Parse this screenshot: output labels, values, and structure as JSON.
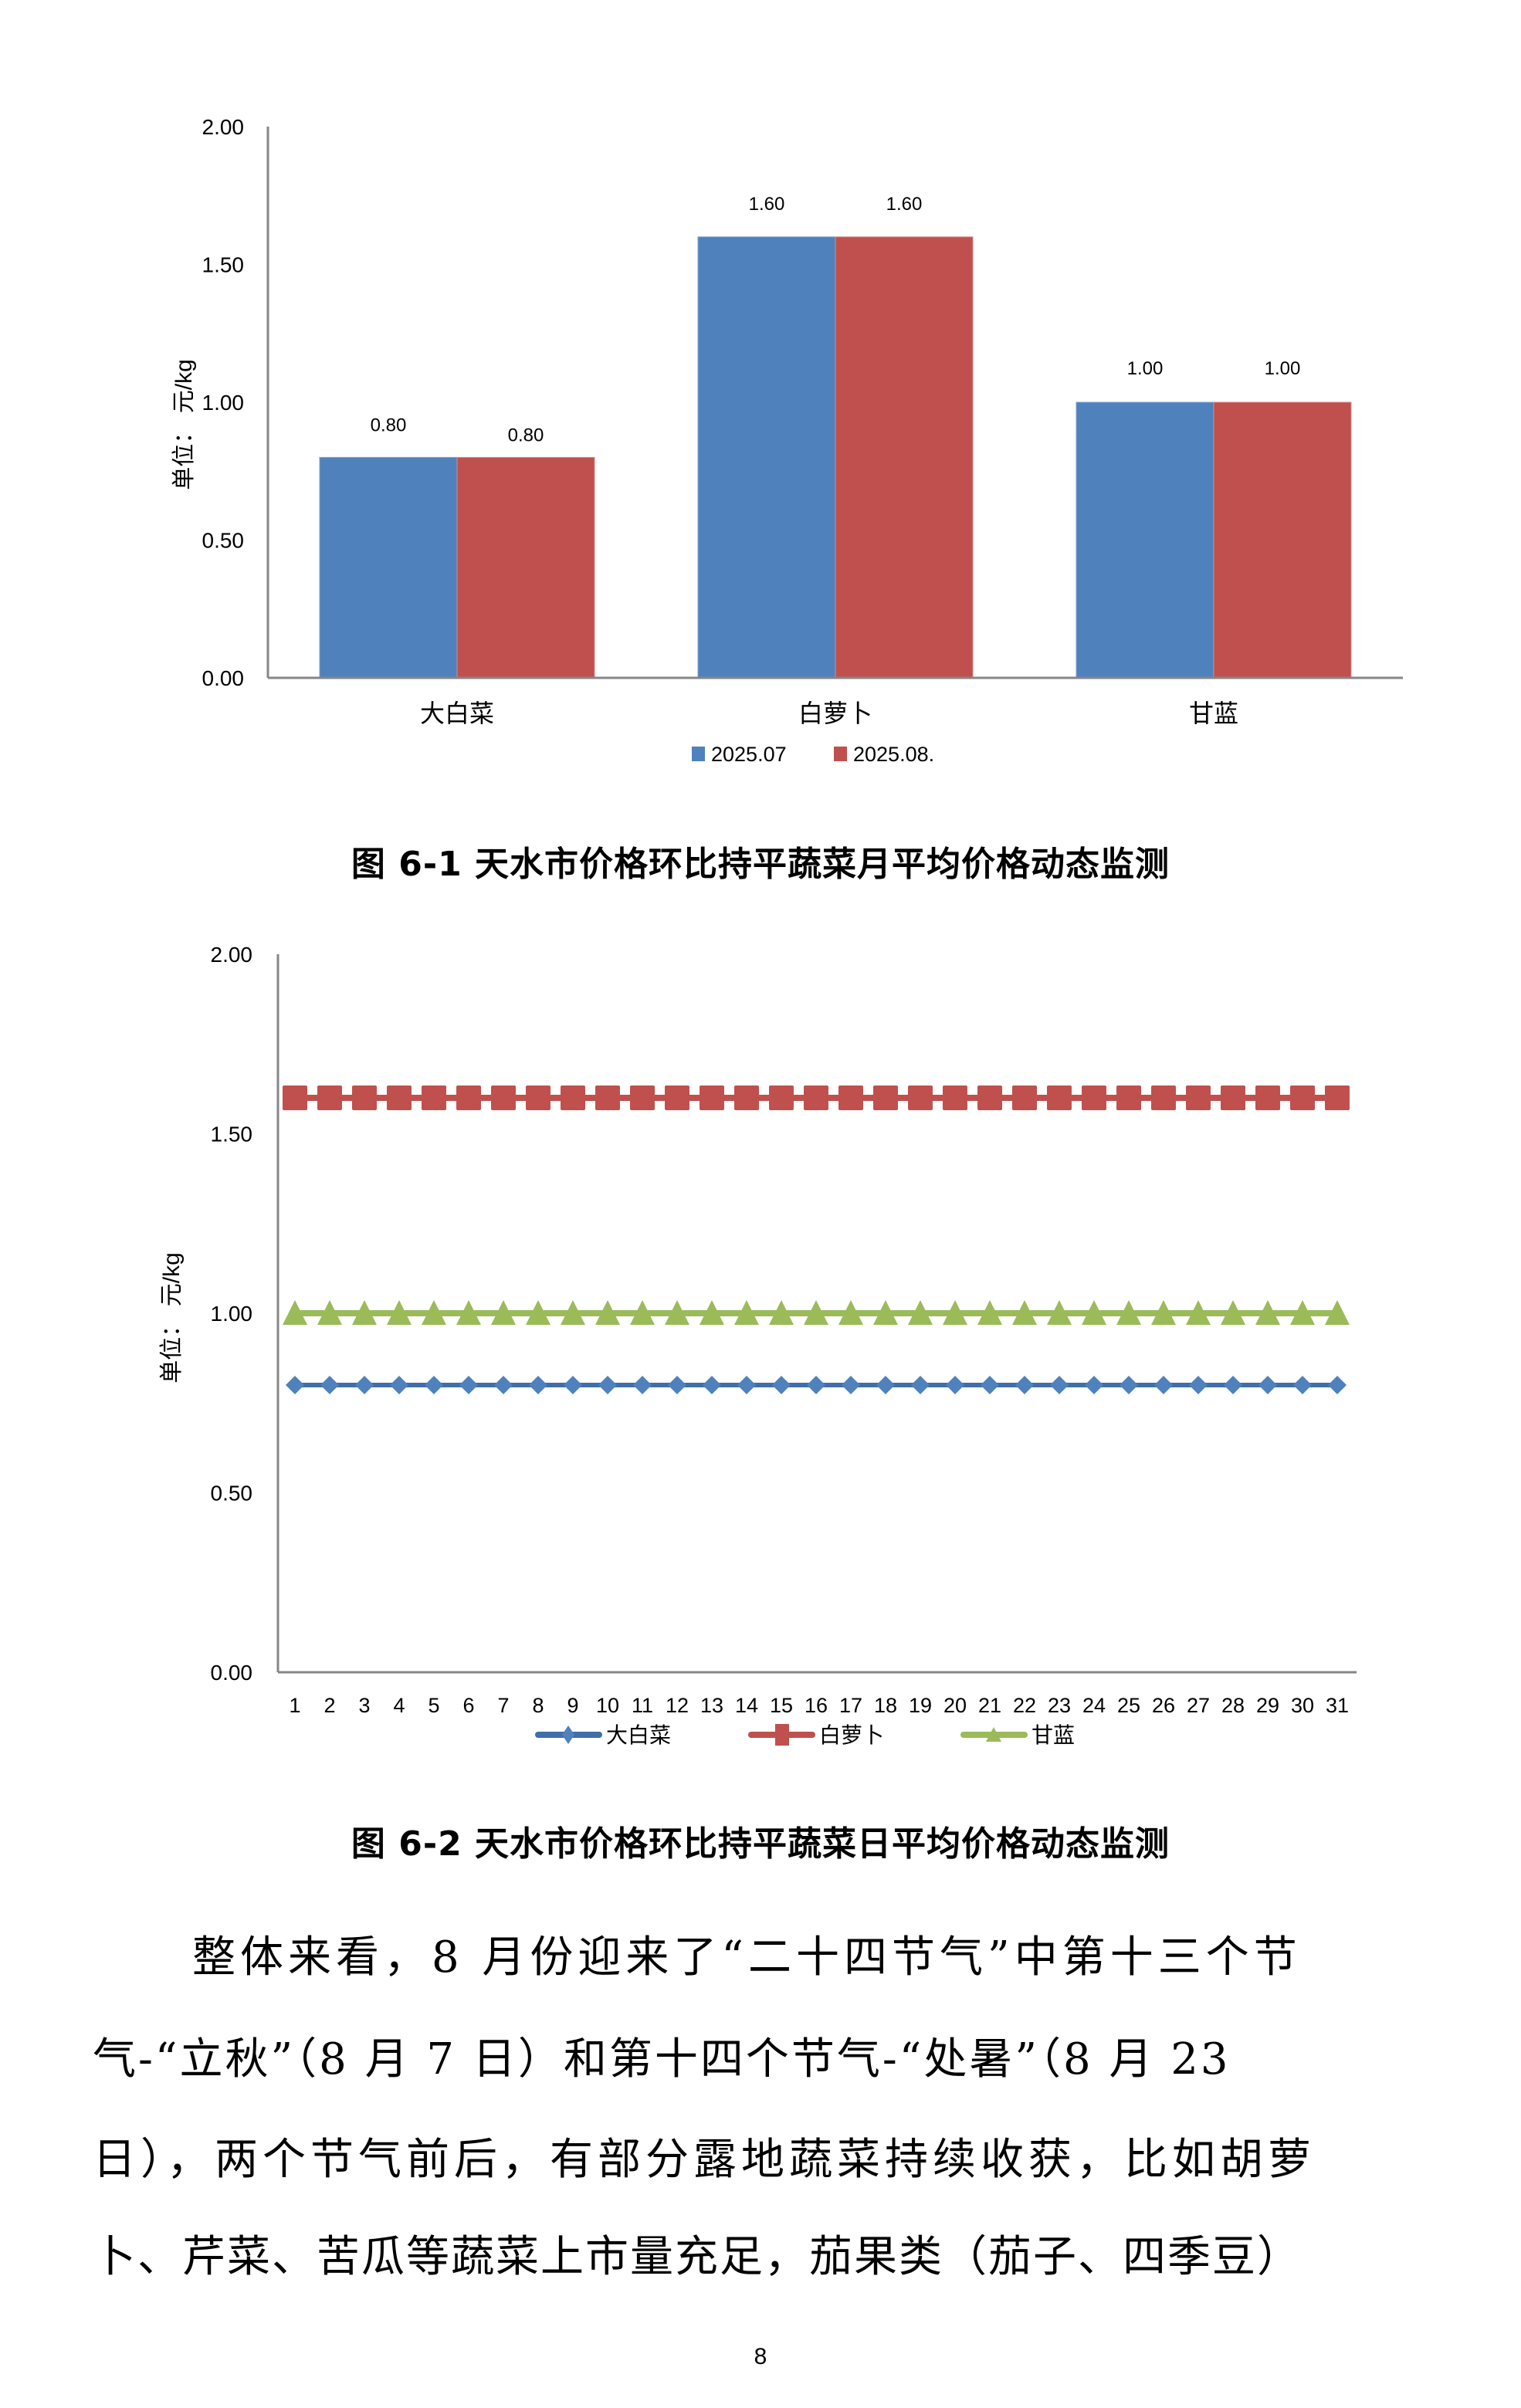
{
  "chart_data": [
    {
      "type": "bar",
      "title": "图 6-1 天水市价格环比持平蔬菜月平均价格动态监测",
      "xlabel": "",
      "ylabel": "单位：元/kg",
      "ylim": [
        0,
        2.0
      ],
      "yticks": [
        "0.00",
        "0.50",
        "1.00",
        "1.50",
        "2.00"
      ],
      "grid": false,
      "legend_position": "bottom",
      "categories": [
        "大白菜",
        "白萝卜",
        "甘蓝"
      ],
      "series": [
        {
          "name": "2025.07",
          "color": "#4F81BD",
          "values": [
            0.8,
            1.6,
            1.0
          ],
          "labels": [
            "0.80",
            "1.60",
            "1.00"
          ]
        },
        {
          "name": "2025.08.",
          "color": "#C0504D",
          "values": [
            0.8,
            1.6,
            1.0
          ],
          "labels": [
            "0.80",
            "1.60",
            "1.00"
          ]
        }
      ]
    },
    {
      "type": "line",
      "title": "图 6-2 天水市价格环比持平蔬菜日平均价格动态监测",
      "xlabel": "",
      "ylabel": "单位：元/kg",
      "ylim": [
        0,
        2.0
      ],
      "yticks": [
        "0.00",
        "0.50",
        "1.00",
        "1.50",
        "2.00"
      ],
      "grid": false,
      "legend_position": "bottom",
      "x": [
        "1",
        "2",
        "3",
        "4",
        "5",
        "6",
        "7",
        "8",
        "9",
        "10",
        "11",
        "12",
        "13",
        "14",
        "15",
        "16",
        "17",
        "18",
        "19",
        "20",
        "21",
        "22",
        "23",
        "24",
        "25",
        "26",
        "27",
        "28",
        "29",
        "30",
        "31"
      ],
      "series": [
        {
          "name": "大白菜",
          "color": "#4F81BD",
          "marker": "diamond",
          "values": [
            0.8,
            0.8,
            0.8,
            0.8,
            0.8,
            0.8,
            0.8,
            0.8,
            0.8,
            0.8,
            0.8,
            0.8,
            0.8,
            0.8,
            0.8,
            0.8,
            0.8,
            0.8,
            0.8,
            0.8,
            0.8,
            0.8,
            0.8,
            0.8,
            0.8,
            0.8,
            0.8,
            0.8,
            0.8,
            0.8,
            0.8
          ]
        },
        {
          "name": "白萝卜",
          "color": "#C0504D",
          "marker": "square",
          "values": [
            1.6,
            1.6,
            1.6,
            1.6,
            1.6,
            1.6,
            1.6,
            1.6,
            1.6,
            1.6,
            1.6,
            1.6,
            1.6,
            1.6,
            1.6,
            1.6,
            1.6,
            1.6,
            1.6,
            1.6,
            1.6,
            1.6,
            1.6,
            1.6,
            1.6,
            1.6,
            1.6,
            1.6,
            1.6,
            1.6,
            1.6
          ]
        },
        {
          "name": "甘蓝",
          "color": "#9BBB59",
          "marker": "triangle",
          "values": [
            1.0,
            1.0,
            1.0,
            1.0,
            1.0,
            1.0,
            1.0,
            1.0,
            1.0,
            1.0,
            1.0,
            1.0,
            1.0,
            1.0,
            1.0,
            1.0,
            1.0,
            1.0,
            1.0,
            1.0,
            1.0,
            1.0,
            1.0,
            1.0,
            1.0,
            1.0,
            1.0,
            1.0,
            1.0,
            1.0,
            1.0
          ]
        }
      ]
    }
  ],
  "figure1": {
    "caption": "图 6-1  天水市价格环比持平蔬菜月平均价格动态监测",
    "ylabel_cn": "单位：",
    "ylabel_unit": "元/kg",
    "legend": [
      "2025.07",
      "2025.08."
    ]
  },
  "figure2": {
    "caption": "图 6-2  天水市价格环比持平蔬菜日平均价格动态监测",
    "ylabel_cn": "单位：",
    "ylabel_unit": "元/kg",
    "legend": [
      "大白菜",
      "白萝卜",
      "甘蓝"
    ]
  },
  "body": {
    "lines": [
      "整体来看，8 月份迎来了“二十四节气”中第十三个节",
      "气-“立秋”（8 月 7 日）和第十四个节气-“处暑”（8 月 23",
      "日），两个节气前后，有部分露地蔬菜持续收获，比如胡萝",
      "卜、芹菜、苦瓜等蔬菜上市量充足，茄果类（茄子、四季豆）"
    ]
  },
  "page_number": "8"
}
